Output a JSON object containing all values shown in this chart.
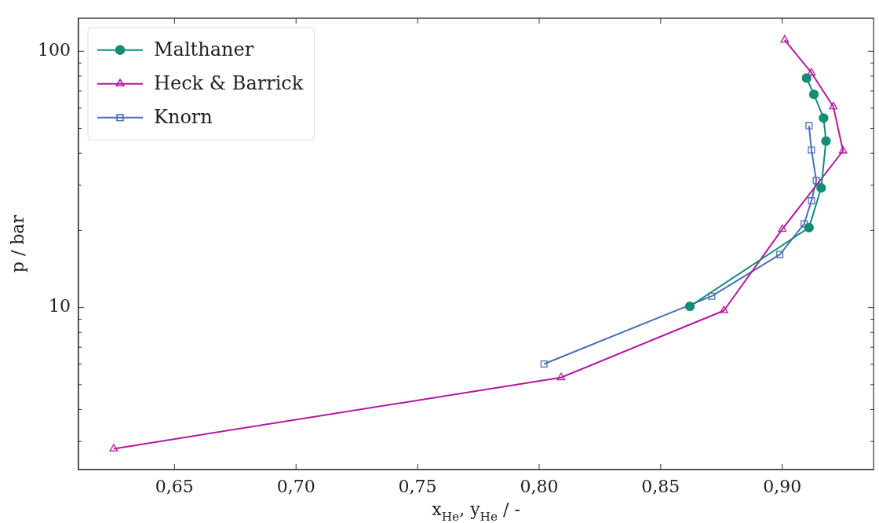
{
  "chart_data": {
    "type": "line",
    "xlabel": "x$_{He}$, y$_{He}$ / -",
    "ylabel": "p / bar",
    "log": "y",
    "grid": false,
    "legend": "top left",
    "line_style": "solid",
    "xlim": [
      0.6105,
      0.9376
    ],
    "ylim": [
      2.33,
      134.6
    ],
    "xticks": [
      {
        "value": 0.65,
        "label": "0,65"
      },
      {
        "value": 0.7,
        "label": "0,70"
      },
      {
        "value": 0.75,
        "label": "0,75"
      },
      {
        "value": 0.8,
        "label": "0,80"
      },
      {
        "value": 0.85,
        "label": "0,85"
      },
      {
        "value": 0.9,
        "label": "0,90"
      }
    ],
    "yticks": [
      {
        "value": 3,
        "label": null
      },
      {
        "value": 4,
        "label": null
      },
      {
        "value": 5,
        "label": null
      },
      {
        "value": 6,
        "label": null
      },
      {
        "value": 7,
        "label": null
      },
      {
        "value": 8,
        "label": null
      },
      {
        "value": 9,
        "label": null
      },
      10,
      {
        "value": 20,
        "label": null
      },
      {
        "value": 30,
        "label": null
      },
      {
        "value": 40,
        "label": null
      },
      {
        "value": 50,
        "label": null
      },
      {
        "value": 60,
        "label": null
      },
      {
        "value": 70,
        "label": null
      },
      {
        "value": 80,
        "label": null
      },
      {
        "value": 90,
        "label": null
      },
      100
    ],
    "series": [
      {
        "name": "Malthaner",
        "color": "#138d75",
        "marker": "circle",
        "x": [
          0.862,
          0.911,
          0.916,
          0.918,
          0.917,
          0.913,
          0.91
        ],
        "values": [
          10.1,
          20.5,
          29.3,
          44.6,
          54.9,
          67.9,
          78.6
        ]
      },
      {
        "name": "Heck & Barrick",
        "color": "#b5179e",
        "marker": "triangle",
        "x": [
          0.625,
          0.809,
          0.876,
          0.9,
          0.925,
          0.921,
          0.912,
          0.901
        ],
        "values": [
          2.81,
          5.33,
          9.73,
          20.2,
          40.9,
          60.8,
          82.4,
          110.7
        ]
      },
      {
        "name": "Knorn",
        "color": "#4c6fb5",
        "marker": "square",
        "x": [
          0.802,
          0.871,
          0.899,
          0.909,
          0.912,
          0.914,
          0.912,
          0.911
        ],
        "values": [
          6.02,
          11.07,
          16.1,
          21.2,
          26.1,
          31.3,
          41.2,
          51.2
        ]
      }
    ]
  }
}
